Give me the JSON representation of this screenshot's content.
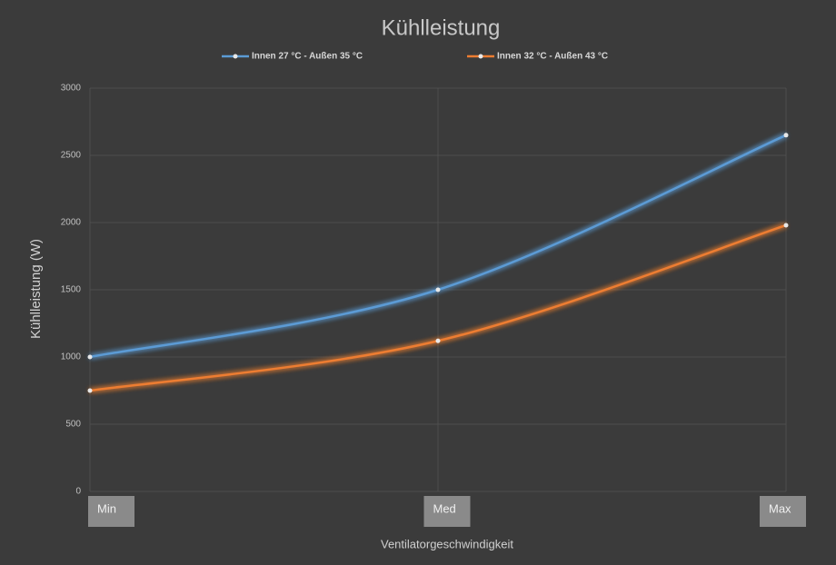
{
  "chart_data": {
    "type": "line",
    "title": "Kühlleistung",
    "y_label": "Kühlleistung (W)",
    "x_label": "Ventilatorgeschwindigkeit",
    "categories": [
      "Min",
      "Med",
      "Max"
    ],
    "series": [
      {
        "name": "Innen 27 °C - Außen 35 °C",
        "color": "#5b9bd5",
        "values": [
          1000,
          1500,
          2650
        ]
      },
      {
        "name": "Innen 32 °C - Außen 43 °C",
        "color": "#ed7d31",
        "values": [
          750,
          1120,
          1980
        ]
      }
    ],
    "ylim": [
      0,
      3000
    ],
    "yticks": [
      0,
      500,
      1000,
      1500,
      2000,
      2500,
      3000
    ],
    "grid": true,
    "smooth": true
  }
}
